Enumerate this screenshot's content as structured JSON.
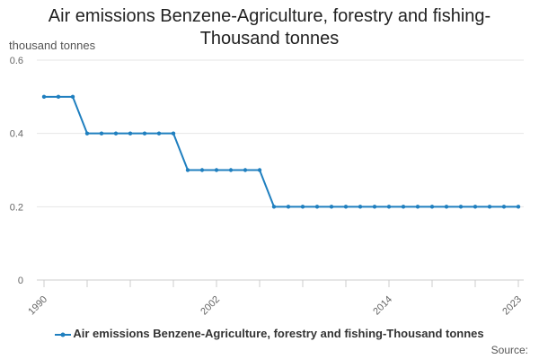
{
  "title": "Air emissions Benzene-Agriculture, forestry and fishing-Thousand tonnes",
  "unit_label": "thousand tonnes",
  "source_label": "Source:",
  "colors": {
    "series": "#1f7fbf",
    "grid": "#e6e6e6",
    "axis": "#cccccc",
    "text": "#666666"
  },
  "chart_data": {
    "type": "line",
    "title": "Air emissions Benzene-Agriculture, forestry and fishing-Thousand tonnes",
    "xlabel": "",
    "ylabel": "thousand tonnes",
    "ylim": [
      0,
      0.6
    ],
    "yticks": [
      0,
      0.2,
      0.4,
      0.6
    ],
    "ytick_labels": [
      "0",
      "0.2",
      "0.4",
      "0.6"
    ],
    "xticks_labeled": [
      1990,
      2002,
      2014,
      2023
    ],
    "grid": true,
    "legend_position": "bottom",
    "x": [
      1990,
      1991,
      1992,
      1993,
      1994,
      1995,
      1996,
      1997,
      1998,
      1999,
      2000,
      2001,
      2002,
      2003,
      2004,
      2005,
      2006,
      2007,
      2008,
      2009,
      2010,
      2011,
      2012,
      2013,
      2014,
      2015,
      2016,
      2017,
      2018,
      2019,
      2020,
      2021,
      2022,
      2023
    ],
    "series": [
      {
        "name": "Air emissions Benzene-Agriculture, forestry and fishing-Thousand tonnes",
        "values": [
          0.5,
          0.5,
          0.5,
          0.4,
          0.4,
          0.4,
          0.4,
          0.4,
          0.4,
          0.4,
          0.3,
          0.3,
          0.3,
          0.3,
          0.3,
          0.3,
          0.2,
          0.2,
          0.2,
          0.2,
          0.2,
          0.2,
          0.2,
          0.2,
          0.2,
          0.2,
          0.2,
          0.2,
          0.2,
          0.2,
          0.2,
          0.2,
          0.2,
          0.2
        ]
      }
    ]
  }
}
